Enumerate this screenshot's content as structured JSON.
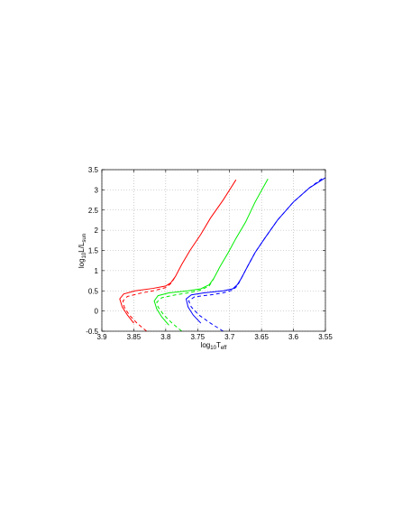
{
  "chart_data": {
    "type": "line",
    "xlabel": [
      "log",
      "10",
      "T",
      "eff"
    ],
    "ylabel": [
      "log",
      "10",
      "L/L",
      "sun"
    ],
    "xlim": [
      3.9,
      3.55
    ],
    "ylim": [
      -0.5,
      3.5
    ],
    "xticks": [
      3.9,
      3.85,
      3.8,
      3.75,
      3.7,
      3.65,
      3.6,
      3.55
    ],
    "yticks": [
      -0.5,
      0,
      0.5,
      1,
      1.5,
      2,
      2.5,
      3,
      3.5
    ],
    "x_reversed": true,
    "grid": true,
    "series": [
      {
        "color": "#ff0000",
        "dashed": false,
        "x": [
          3.85,
          3.86,
          3.868,
          3.872,
          3.866,
          3.848,
          3.82,
          3.8,
          3.792,
          3.785,
          3.775,
          3.762,
          3.745,
          3.73,
          3.71,
          3.69
        ],
        "values": [
          -0.3,
          -0.1,
          0.1,
          0.3,
          0.42,
          0.5,
          0.56,
          0.62,
          0.7,
          0.85,
          1.15,
          1.5,
          1.9,
          2.3,
          2.75,
          3.25
        ]
      },
      {
        "color": "#ff0000",
        "dashed": true,
        "x": [
          3.83,
          3.845,
          3.857,
          3.865,
          3.867,
          3.86,
          3.84,
          3.82,
          3.8,
          3.792,
          3.785
        ],
        "values": [
          -0.5,
          -0.3,
          -0.1,
          0.1,
          0.25,
          0.36,
          0.44,
          0.5,
          0.58,
          0.68,
          0.85
        ]
      },
      {
        "color": "#00ee00",
        "dashed": false,
        "x": [
          3.795,
          3.806,
          3.814,
          3.818,
          3.812,
          3.795,
          3.765,
          3.745,
          3.732,
          3.725,
          3.715,
          3.702,
          3.69,
          3.675,
          3.66,
          3.64
        ],
        "values": [
          -0.35,
          -0.15,
          0.05,
          0.25,
          0.38,
          0.45,
          0.5,
          0.55,
          0.65,
          0.8,
          1.1,
          1.45,
          1.8,
          2.2,
          2.7,
          3.27
        ]
      },
      {
        "color": "#00ee00",
        "dashed": true,
        "x": [
          3.775,
          3.79,
          3.803,
          3.812,
          3.814,
          3.806,
          3.785,
          3.765,
          3.745,
          3.732,
          3.725
        ],
        "values": [
          -0.5,
          -0.3,
          -0.1,
          0.1,
          0.22,
          0.33,
          0.4,
          0.45,
          0.52,
          0.62,
          0.8
        ]
      },
      {
        "color": "#0000ff",
        "dashed": false,
        "x": [
          3.745,
          3.757,
          3.765,
          3.768,
          3.76,
          3.74,
          3.71,
          3.695,
          3.688,
          3.682,
          3.672,
          3.66,
          3.645,
          3.625,
          3.6,
          3.575,
          3.55
        ],
        "values": [
          -0.3,
          -0.1,
          0.1,
          0.3,
          0.4,
          0.45,
          0.5,
          0.55,
          0.65,
          0.8,
          1.1,
          1.45,
          1.8,
          2.25,
          2.7,
          3.05,
          3.3
        ]
      },
      {
        "color": "#0000ff",
        "dashed": true,
        "x": [
          3.71,
          3.73,
          3.748,
          3.76,
          3.764,
          3.755,
          3.73,
          3.71,
          3.695,
          3.688,
          3.682,
          3.672,
          3.66,
          3.645,
          3.625,
          3.6,
          3.575,
          3.555
        ],
        "values": [
          -0.5,
          -0.3,
          -0.1,
          0.1,
          0.25,
          0.35,
          0.4,
          0.45,
          0.52,
          0.62,
          0.8,
          1.1,
          1.45,
          1.8,
          2.25,
          2.7,
          3.05,
          3.28
        ]
      }
    ]
  }
}
